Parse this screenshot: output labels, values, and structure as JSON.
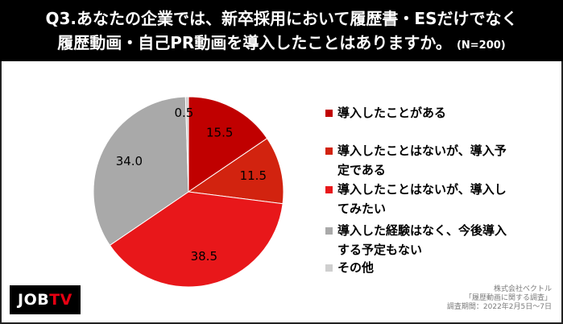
{
  "header": {
    "title_line1": "Q3.あなたの企業では、新卒採用において履歴書・ESだけでなく",
    "title_line2": "履歴動画・自己PR動画を導入したことはありますか。",
    "sample_note": "(N=200)"
  },
  "chart_data": {
    "type": "pie",
    "start_angle_deg": 0,
    "direction": "clockwise",
    "slices": [
      {
        "label": "導入したことがある",
        "value": 15.5,
        "display": "15.5",
        "color": "#c00000"
      },
      {
        "label": "導入したことはないが、導入予定である",
        "value": 11.5,
        "display": "11.5",
        "color": "#d2230f"
      },
      {
        "label": "導入したことはないが、導入してみたい",
        "value": 38.5,
        "display": "38.5",
        "color": "#e8171a"
      },
      {
        "label": "導入した経験はなく、今後導入する予定もない",
        "value": 34.0,
        "display": "34.0",
        "color": "#a9a9a9"
      },
      {
        "label": "その他",
        "value": 0.5,
        "display": "0.5",
        "color": "#cfcfcf"
      }
    ]
  },
  "legend": {
    "items": [
      {
        "line1": "導入したことがある",
        "line2": "",
        "color": "#c00000"
      },
      {
        "line1": "導入したことはないが、導入予",
        "line2": "定である",
        "color": "#d2230f"
      },
      {
        "line1": "導入したことはないが、導入し",
        "line2": "てみたい",
        "color": "#e8171a"
      },
      {
        "line1": "導入した経験はなく、今後導入",
        "line2": "する予定もない",
        "color": "#a9a9a9"
      },
      {
        "line1": "その他",
        "line2": "",
        "color": "#cfcfcf"
      }
    ]
  },
  "logo": {
    "text_a": "JOB",
    "text_b": "TV"
  },
  "source": {
    "line1": "株式会社ベクトル",
    "line2": "「履歴動画に関する調査」",
    "line3": "調査期間：2022年2月5日〜7日"
  }
}
